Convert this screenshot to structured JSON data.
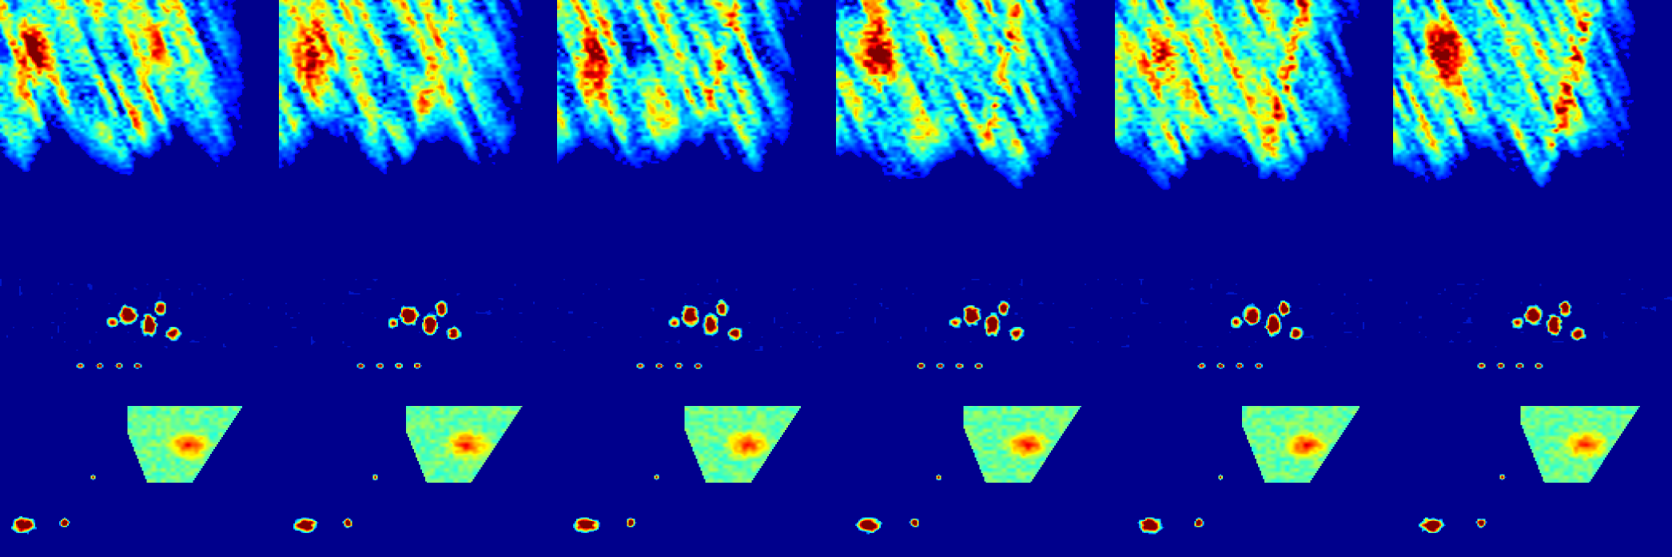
{
  "colormap": "jet",
  "background_color": "#00008c",
  "rows": [
    {
      "kind": "radar-sector-sequence",
      "panels": [
        {
          "frame": 1
        },
        {
          "frame": 2
        },
        {
          "frame": 3
        },
        {
          "frame": 4
        },
        {
          "frame": 5
        },
        {
          "frame": 6
        }
      ]
    },
    {
      "kind": "radar-echo-sequence",
      "panels": [
        {
          "frame": 1
        },
        {
          "frame": 2
        },
        {
          "frame": 3
        },
        {
          "frame": 4
        },
        {
          "frame": 5
        },
        {
          "frame": 6
        }
      ]
    }
  ]
}
